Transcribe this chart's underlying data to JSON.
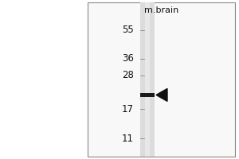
{
  "bg_color": "#ffffff",
  "box_bg": "#f5f5f5",
  "lane_label": "m.brain",
  "mw_markers": [
    55,
    36,
    28,
    17,
    11
  ],
  "band_mw": 21.0,
  "arrow_color": "#111111",
  "text_color": "#111111",
  "title_fontsize": 7.5,
  "marker_fontsize": 8.5,
  "lane_label_fontsize": 8
}
